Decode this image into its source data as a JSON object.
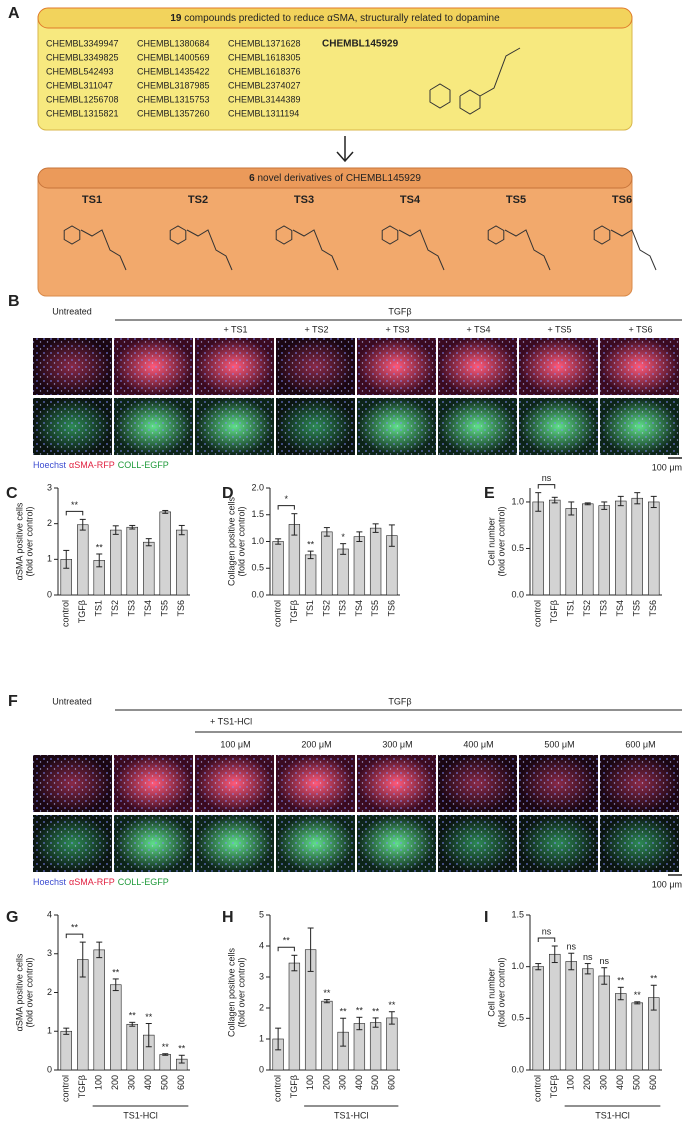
{
  "panel_a": {
    "label": "A",
    "header_count": "19",
    "header_text": "compounds predicted to reduce αSMA, structurally related to dopamine",
    "compounds": [
      "CHEMBL3349947",
      "CHEMBL3349825",
      "CHEMBL542493",
      "CHEMBL311047",
      "CHEMBL1256708",
      "CHEMBL1315821",
      "CHEMBL1380684",
      "CHEMBL1400569",
      "CHEMBL1435422",
      "CHEMBL3187985",
      "CHEMBL1315753",
      "CHEMBL1357260",
      "CHEMBL1371628",
      "CHEMBL1618305",
      "CHEMBL1618376",
      "CHEMBL2374027",
      "CHEMBL3144389",
      "CHEMBL1311194"
    ],
    "featured": "CHEMBL145929",
    "derivatives_count": "6",
    "derivatives_text": "novel derivatives of CHEMBL145929",
    "derivatives": [
      "TS1",
      "TS2",
      "TS3",
      "TS4",
      "TS5",
      "TS6"
    ]
  },
  "panel_b": {
    "label": "B",
    "untreated": "Untreated",
    "treatment": "TGFβ",
    "conditions": [
      "+ TS1",
      "+ TS2",
      "+ TS3",
      "+ TS4",
      "+ TS5",
      "+ TS6"
    ],
    "legend": [
      "Hoechst",
      "αSMA-RFP",
      "COLL-EGFP"
    ],
    "scale": "100 μm"
  },
  "panel_f": {
    "label": "F",
    "untreated": "Untreated",
    "treatment": "TGFβ",
    "subtreatment": "+ TS1-HCl",
    "conditions": [
      "100 μM",
      "200 μM",
      "300 μM",
      "400 μM",
      "500 μM",
      "600 μM"
    ],
    "legend": [
      "Hoechst",
      "αSMA-RFP",
      "COLL-EGFP"
    ],
    "scale": "100 μm"
  },
  "chart_data": [
    {
      "type": "bar",
      "panel_label": "C",
      "ylabel": [
        "αSMA positive cells",
        "(fold over control)"
      ],
      "categories": [
        "control",
        "TGFβ",
        "TS1",
        "TS2",
        "TS3",
        "TS4",
        "TS5",
        "TS6"
      ],
      "values": [
        1.0,
        1.97,
        0.97,
        1.82,
        1.9,
        1.48,
        2.33,
        1.82
      ],
      "errors": [
        0.25,
        0.15,
        0.18,
        0.12,
        0.05,
        0.1,
        0.04,
        0.13
      ],
      "annotations": [
        null,
        null,
        "**",
        null,
        null,
        null,
        null,
        null
      ],
      "bracket_label": "**",
      "color": "#d3d3d3",
      "ylim": [
        0,
        3
      ],
      "yticks": [
        0,
        1,
        2,
        3
      ]
    },
    {
      "type": "bar",
      "panel_label": "D",
      "ylabel": [
        "Collagen positive cells",
        "(fold over control)"
      ],
      "categories": [
        "control",
        "TGFβ",
        "TS1",
        "TS2",
        "TS3",
        "TS4",
        "TS5",
        "TS6"
      ],
      "values": [
        1.0,
        1.32,
        0.75,
        1.18,
        0.86,
        1.09,
        1.25,
        1.11
      ],
      "errors": [
        0.05,
        0.2,
        0.07,
        0.08,
        0.1,
        0.09,
        0.08,
        0.2
      ],
      "annotations": [
        null,
        null,
        "**",
        null,
        "*",
        null,
        null,
        null
      ],
      "bracket_label": "*",
      "color": "#d3d3d3",
      "ylim": [
        0,
        2
      ],
      "yticks": [
        {
          "value": 0,
          "label": "0.0"
        },
        {
          "value": 0.5,
          "label": "0.5"
        },
        {
          "value": 1,
          "label": "1.0"
        },
        {
          "value": 1.5,
          "label": "1.5"
        },
        {
          "value": 2,
          "label": "2.0"
        }
      ]
    },
    {
      "type": "bar",
      "panel_label": "E",
      "ylabel": [
        "Cell number",
        "(fold over control)"
      ],
      "categories": [
        "control",
        "TGFβ",
        "TS1",
        "TS2",
        "TS3",
        "TS4",
        "TS5",
        "TS6"
      ],
      "values": [
        1.0,
        1.02,
        0.93,
        0.98,
        0.96,
        1.01,
        1.04,
        1.0
      ],
      "errors": [
        0.1,
        0.03,
        0.07,
        0.01,
        0.04,
        0.05,
        0.06,
        0.06
      ],
      "annotations": [
        null,
        null,
        null,
        null,
        null,
        null,
        null,
        null
      ],
      "bracket_label": "ns",
      "color": "#d3d3d3",
      "ylim": [
        0,
        1.15
      ],
      "yticks": [
        {
          "value": 0,
          "label": "0.0"
        },
        {
          "value": 0.5,
          "label": "0.5"
        },
        {
          "value": 1,
          "label": "1.0"
        }
      ]
    },
    {
      "type": "bar",
      "panel_label": "G",
      "ylabel": [
        "αSMA positive cells",
        "(fold over control)"
      ],
      "categories": [
        "control",
        "TGFβ",
        "100",
        "200",
        "300",
        "400",
        "500",
        "600"
      ],
      "values": [
        1.0,
        2.85,
        3.1,
        2.2,
        1.18,
        0.9,
        0.4,
        0.28
      ],
      "errors": [
        0.08,
        0.45,
        0.2,
        0.15,
        0.05,
        0.3,
        0.02,
        0.1
      ],
      "annotations": [
        null,
        null,
        null,
        "**",
        "**",
        "**",
        "**",
        "**"
      ],
      "bracket_label": "**",
      "group_label": "TS1-HCl",
      "color": "#d3d3d3",
      "ylim": [
        0,
        4
      ],
      "yticks": [
        0,
        1,
        2,
        3,
        4
      ]
    },
    {
      "type": "bar",
      "panel_label": "H",
      "ylabel": [
        "Collagen positive cells",
        "(fold over control)"
      ],
      "categories": [
        "control",
        "TGFβ",
        "100",
        "200",
        "300",
        "400",
        "500",
        "600"
      ],
      "values": [
        1.0,
        3.45,
        3.88,
        2.22,
        1.22,
        1.5,
        1.53,
        1.68
      ],
      "errors": [
        0.35,
        0.25,
        0.7,
        0.05,
        0.45,
        0.2,
        0.15,
        0.2
      ],
      "annotations": [
        null,
        null,
        null,
        "**",
        "**",
        "**",
        "**",
        "**"
      ],
      "bracket_label": "**",
      "group_label": "TS1-HCl",
      "color": "#d3d3d3",
      "ylim": [
        0,
        5
      ],
      "yticks": [
        0,
        1,
        2,
        3,
        4,
        5
      ]
    },
    {
      "type": "bar",
      "panel_label": "I",
      "ylabel": [
        "Cell number",
        "(fold over control)"
      ],
      "categories": [
        "control",
        "TGFβ",
        "100",
        "200",
        "300",
        "400",
        "500",
        "600"
      ],
      "values": [
        1.0,
        1.12,
        1.05,
        0.98,
        0.91,
        0.74,
        0.65,
        0.7
      ],
      "errors": [
        0.03,
        0.08,
        0.08,
        0.05,
        0.08,
        0.06,
        0.01,
        0.12
      ],
      "annotations": [
        null,
        null,
        "ns",
        "ns",
        "ns",
        "**",
        "**",
        "**"
      ],
      "bracket_label": "ns",
      "group_label": "TS1-HCl",
      "color": "#d3d3d3",
      "ylim": [
        0,
        1.5
      ],
      "yticks": [
        {
          "value": 0,
          "label": "0.0"
        },
        {
          "value": 0.5,
          "label": "0.5"
        },
        {
          "value": 1,
          "label": "1.0"
        },
        {
          "value": 1.5,
          "label": "1.5"
        }
      ]
    }
  ]
}
